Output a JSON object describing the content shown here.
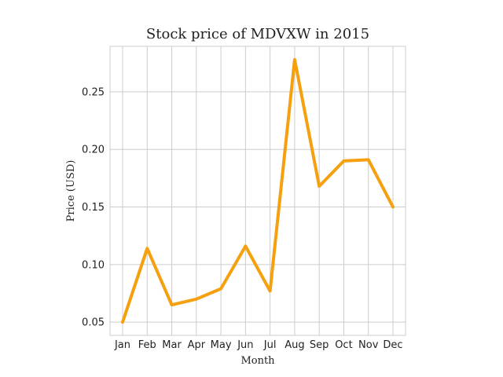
{
  "chart_data": {
    "type": "line",
    "title": "Stock price of MDVXW in 2015",
    "xlabel": "Month",
    "ylabel": "Price (USD)",
    "categories": [
      "Jan",
      "Feb",
      "Mar",
      "Apr",
      "May",
      "Jun",
      "Jul",
      "Aug",
      "Sep",
      "Oct",
      "Nov",
      "Dec"
    ],
    "series": [
      {
        "values": [
          0.05,
          0.114,
          0.065,
          0.07,
          0.079,
          0.116,
          0.077,
          0.278,
          0.168,
          0.19,
          0.191,
          0.15
        ],
        "color": "#f5a00f"
      }
    ],
    "yticks": [
      0.05,
      0.1,
      0.15,
      0.2,
      0.25
    ],
    "ytick_labels": [
      "0.05",
      "0.10",
      "0.15",
      "0.20",
      "0.25"
    ],
    "ylim": [
      0.0385,
      0.2895
    ],
    "grid": true,
    "legend": "none"
  }
}
